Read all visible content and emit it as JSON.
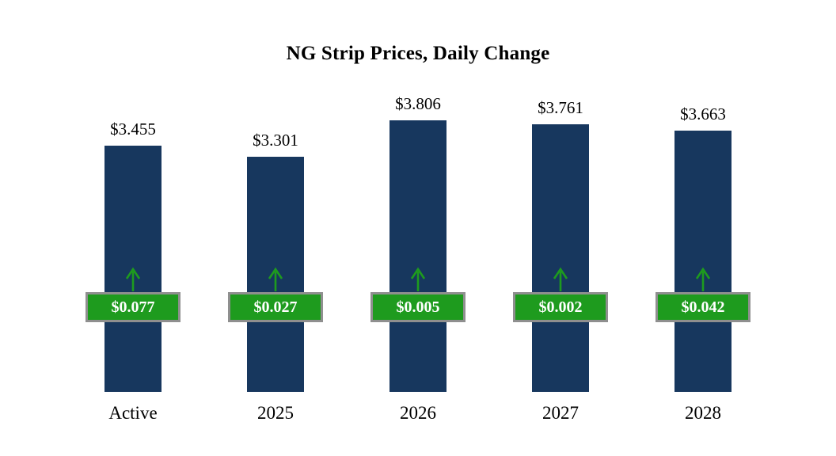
{
  "chart_data": {
    "type": "bar",
    "title": "NG Strip Prices, Daily Change",
    "categories": [
      "Active",
      "2025",
      "2026",
      "2027",
      "2028"
    ],
    "values": [
      3.455,
      3.301,
      3.806,
      3.761,
      3.663
    ],
    "value_labels": [
      "$3.455",
      "$3.301",
      "$3.806",
      "$3.761",
      "$3.663"
    ],
    "daily_changes": [
      0.077,
      0.027,
      0.005,
      0.002,
      0.042
    ],
    "change_labels": [
      "$0.077",
      "$0.027",
      "$0.005",
      "$0.002",
      "$0.042"
    ],
    "bar_color": "#17375E",
    "badge_color": "#1E9B1E",
    "badge_border_color": "#8f8f8f",
    "arrow_color": "#1E9B1E",
    "ylim": [
      0,
      4
    ],
    "legend": "none",
    "grid": "off"
  }
}
